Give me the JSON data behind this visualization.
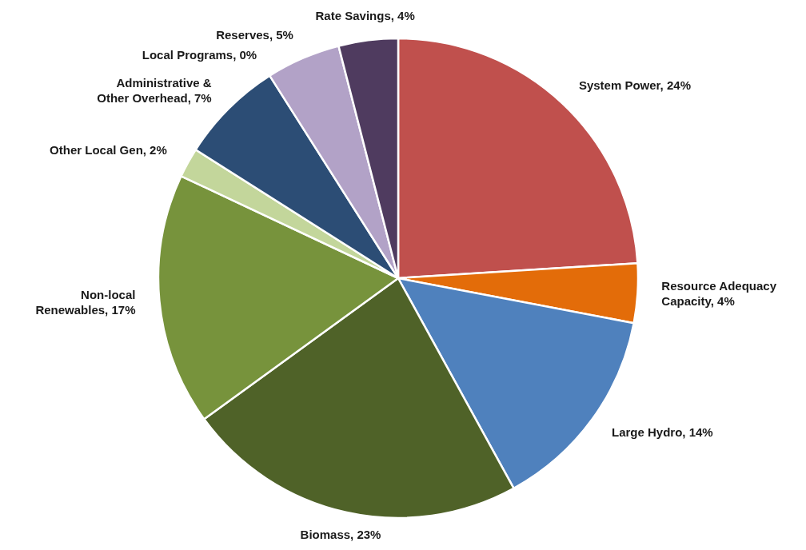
{
  "chart_data": {
    "type": "pie",
    "categories": [
      "System Power, 24%",
      "Resource Adequacy Capacity, 4%",
      "Large Hydro, 14%",
      "Biomass, 23%",
      "Non-local Renewables, 17%",
      "Other Local Gen, 2%",
      "Administrative & Other Overhead, 7%",
      "Local Programs, 0%",
      "Reserves, 5%",
      "Rate Savings, 4%"
    ],
    "values": [
      24,
      4,
      14,
      23,
      17,
      2,
      7,
      0,
      5,
      4
    ],
    "colors": [
      "#c0504d",
      "#e36c09",
      "#4f81bd",
      "#4f6228",
      "#77933c",
      "#c3d69b",
      "#2c4d75",
      "#8064a2",
      "#b2a2c7",
      "#4f3b5f"
    ],
    "legend": false
  }
}
